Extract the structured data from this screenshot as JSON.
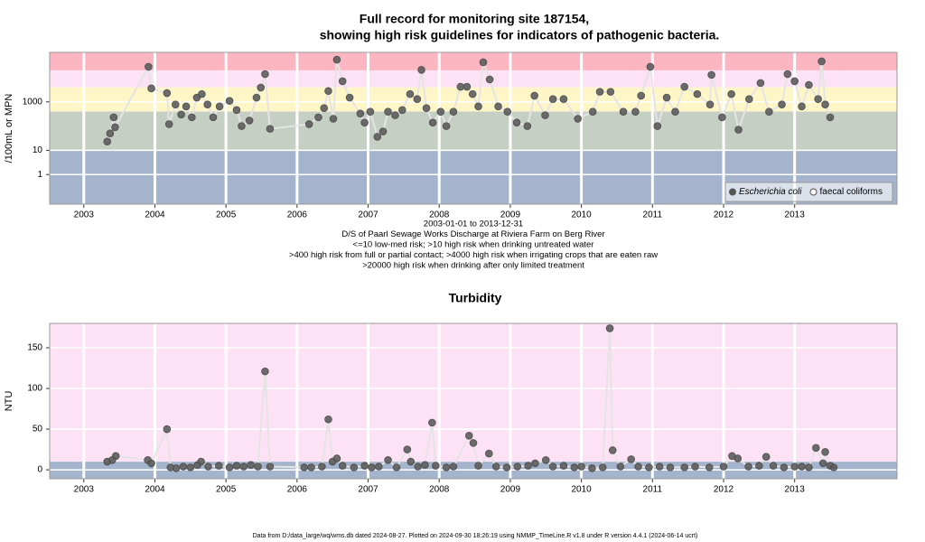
{
  "chart_data": [
    {
      "type": "line",
      "markers": true,
      "title": "Full record for monitoring site 187154,",
      "subtitle": "showing high risk guidelines for indicators of pathogenic bacteria.",
      "ylabel": "/100mL or MPN",
      "notes": [
        "2003-01-01 to 2013-12-31",
        "D/S of Paarl Sewage Works Discharge at Riviera Farm on Berg River",
        "<=10 low-med risk; >10 high risk when drinking untreated water",
        ">400 high risk from full or partial contact; >4000 high risk when irrigating crops that are eaten raw",
        ">20000 high risk when drinking after only limited treatment"
      ],
      "log_y": true,
      "xlim": [
        2002.52,
        2014.44
      ],
      "xticks": [
        2003,
        2004,
        2005,
        2006,
        2007,
        2008,
        2009,
        2010,
        2011,
        2012,
        2013
      ],
      "ylim": [
        0.06,
        110000
      ],
      "yticks": [
        1,
        10,
        1000
      ],
      "grid": true,
      "band_breaks": [
        10,
        400,
        4000,
        20000
      ],
      "band_colors": [
        "#a3b4cc",
        "#c6cfc4",
        "#fff6c8",
        "#fde2f5",
        "#fbb6c2"
      ],
      "line_color": "#e4e4e4",
      "legend": "bottom right",
      "series": [
        {
          "name": "Escherichia coli",
          "color": "#555555",
          "filled": true,
          "x": [
            2003.33,
            2003.37,
            2003.42,
            2003.44,
            2003.91,
            2003.95,
            2004.17,
            2004.2,
            2004.29,
            2004.37,
            2004.44,
            2004.52,
            2004.59,
            2004.66,
            2004.74,
            2004.82,
            2004.91,
            2005.05,
            2005.15,
            2005.22,
            2005.33,
            2005.43,
            2005.49,
            2005.55,
            2005.62,
            2006.17,
            2006.3,
            2006.38,
            2006.44,
            2006.51,
            2006.56,
            2006.64,
            2006.74,
            2006.89,
            2006.95,
            2007.03,
            2007.13,
            2007.21,
            2007.28,
            2007.38,
            2007.48,
            2007.59,
            2007.69,
            2007.75,
            2007.82,
            2007.91,
            2008.02,
            2008.1,
            2008.2,
            2008.3,
            2008.39,
            2008.47,
            2008.55,
            2008.62,
            2008.71,
            2008.83,
            2008.96,
            2009.09,
            2009.24,
            2009.34,
            2009.49,
            2009.6,
            2009.75,
            2009.95,
            2010.16,
            2010.26,
            2010.41,
            2010.59,
            2010.76,
            2010.84,
            2010.97,
            2011.07,
            2011.2,
            2011.32,
            2011.45,
            2011.63,
            2011.81,
            2011.83,
            2011.98,
            2012.11,
            2012.21,
            2012.36,
            2012.52,
            2012.64,
            2012.82,
            2012.9,
            2013.0,
            2013.1,
            2013.2,
            2013.33,
            2013.38,
            2013.43,
            2013.5
          ],
          "values": [
            23,
            50,
            230,
            90,
            28000,
            3600,
            2300,
            120,
            780,
            300,
            650,
            230,
            1500,
            2100,
            780,
            230,
            650,
            1100,
            460,
            100,
            170,
            1500,
            3900,
            14000,
            77,
            120,
            230,
            550,
            2800,
            200,
            55000,
            7100,
            1500,
            330,
            140,
            390,
            36,
            60,
            390,
            280,
            460,
            2100,
            1300,
            21000,
            550,
            140,
            390,
            100,
            390,
            4200,
            4200,
            2100,
            650,
            43000,
            8400,
            650,
            390,
            140,
            100,
            1800,
            280,
            1300,
            1300,
            200,
            390,
            2600,
            2600,
            390,
            390,
            1800,
            28000,
            100,
            1500,
            390,
            4200,
            2100,
            780,
            13000,
            230,
            2100,
            71,
            1300,
            6000,
            390,
            780,
            14000,
            7100,
            650,
            5000,
            1300,
            47000,
            780,
            230
          ]
        },
        {
          "name": "faecal coliforms",
          "color": "#555555",
          "filled": false,
          "x": [],
          "values": []
        }
      ]
    },
    {
      "type": "line",
      "markers": true,
      "title": "Turbidity",
      "ylabel": "NTU",
      "log_y": false,
      "xlim": [
        2002.52,
        2014.44
      ],
      "xticks": [
        2003,
        2004,
        2005,
        2006,
        2007,
        2008,
        2009,
        2010,
        2011,
        2012,
        2013
      ],
      "ylim": [
        -11,
        180
      ],
      "yticks": [
        0,
        50,
        100,
        150
      ],
      "grid": true,
      "band_breaks": [
        10
      ],
      "band_colors": [
        "#a3b4cc",
        "#fde2f5"
      ],
      "line_color": "#e4e4e4",
      "series": [
        {
          "color": "#555555",
          "filled": true,
          "x": [
            2003.33,
            2003.4,
            2003.45,
            2003.9,
            2003.95,
            2004.17,
            2004.22,
            2004.3,
            2004.4,
            2004.5,
            2004.6,
            2004.65,
            2004.75,
            2004.9,
            2005.05,
            2005.15,
            2005.25,
            2005.35,
            2005.45,
            2005.55,
            2005.62,
            2006.1,
            2006.2,
            2006.35,
            2006.44,
            2006.5,
            2006.56,
            2006.64,
            2006.8,
            2006.95,
            2007.05,
            2007.15,
            2007.28,
            2007.4,
            2007.55,
            2007.6,
            2007.7,
            2007.8,
            2007.9,
            2007.95,
            2008.1,
            2008.2,
            2008.42,
            2008.48,
            2008.55,
            2008.7,
            2008.8,
            2008.95,
            2009.1,
            2009.25,
            2009.35,
            2009.5,
            2009.6,
            2009.75,
            2009.9,
            2010.0,
            2010.15,
            2010.3,
            2010.4,
            2010.44,
            2010.55,
            2010.7,
            2010.8,
            2010.95,
            2011.1,
            2011.25,
            2011.45,
            2011.6,
            2011.8,
            2012.0,
            2012.12,
            2012.2,
            2012.35,
            2012.5,
            2012.6,
            2012.7,
            2012.85,
            2013.0,
            2013.1,
            2013.2,
            2013.3,
            2013.4,
            2013.43,
            2013.5,
            2013.55
          ],
          "values": [
            10,
            12,
            17,
            12,
            8,
            50,
            3,
            2,
            4,
            3,
            6,
            10,
            4,
            5,
            3,
            5,
            4,
            6,
            4,
            121,
            4,
            3,
            3,
            4,
            62,
            10,
            14,
            5,
            3,
            5,
            3,
            4,
            12,
            3,
            25,
            10,
            4,
            6,
            58,
            5,
            3,
            4,
            42,
            33,
            5,
            20,
            4,
            3,
            4,
            5,
            8,
            12,
            4,
            5,
            3,
            4,
            2,
            3,
            174,
            24,
            4,
            13,
            4,
            3,
            4,
            3,
            3,
            4,
            3,
            4,
            17,
            14,
            4,
            5,
            16,
            5,
            3,
            4,
            4,
            3,
            27,
            8,
            22,
            5,
            3
          ]
        }
      ]
    }
  ],
  "footer": "Data from D:/data_large/wq/wms.db dated 2024-08-27. Plotted on 2024-09-30 18:26:19 using NMMP_TimeLine.R v1.8 under R version 4.4.1 (2024-06-14 ucrt)"
}
